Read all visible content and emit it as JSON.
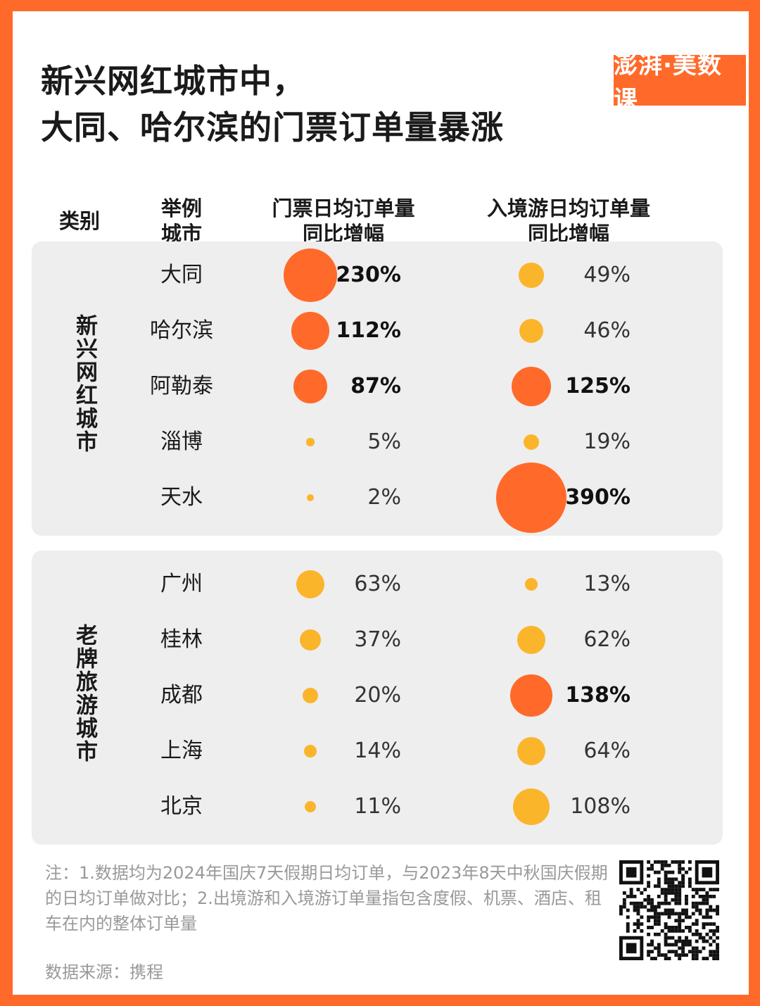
{
  "title": [
    "新兴网红城市中，",
    "大同、哈尔滨的门票订单量暴涨"
  ],
  "logo": "澎湃·美数课",
  "headers": {
    "category": "类别",
    "city": [
      "举例",
      "城市"
    ],
    "col1": [
      "门票日均订单量",
      "同比增幅"
    ],
    "col2": [
      "入境游日均订单量",
      "同比增幅"
    ]
  },
  "colors": {
    "highlight": "#ff6a2a",
    "normal": "#fbb52b",
    "background": "#ff6a2a",
    "panel": "#eeeeee"
  },
  "chart_data": {
    "type": "table",
    "columns": [
      "门票日均订单量同比增幅",
      "入境游日均订单量同比增幅"
    ],
    "groups": [
      {
        "name": "新兴网红城市",
        "rows": [
          {
            "city": "大同",
            "ticket": 230,
            "inbound": 49,
            "ticket_label": "230%",
            "inbound_label": "49%",
            "ticket_hl": true,
            "inbound_hl": false
          },
          {
            "city": "哈尔滨",
            "ticket": 112,
            "inbound": 46,
            "ticket_label": "112%",
            "inbound_label": "46%",
            "ticket_hl": true,
            "inbound_hl": false
          },
          {
            "city": "阿勒泰",
            "ticket": 87,
            "inbound": 125,
            "ticket_label": "87%",
            "inbound_label": "125%",
            "ticket_hl": true,
            "inbound_hl": true
          },
          {
            "city": "淄博",
            "ticket": 5,
            "inbound": 19,
            "ticket_label": "5%",
            "inbound_label": "19%",
            "ticket_hl": false,
            "inbound_hl": false
          },
          {
            "city": "天水",
            "ticket": 2,
            "inbound": 390,
            "ticket_label": "2%",
            "inbound_label": "390%",
            "ticket_hl": false,
            "inbound_hl": true
          }
        ]
      },
      {
        "name": "老牌旅游城市",
        "rows": [
          {
            "city": "广州",
            "ticket": 63,
            "inbound": 13,
            "ticket_label": "63%",
            "inbound_label": "13%",
            "ticket_hl": false,
            "inbound_hl": false
          },
          {
            "city": "桂林",
            "ticket": 37,
            "inbound": 62,
            "ticket_label": "37%",
            "inbound_label": "62%",
            "ticket_hl": false,
            "inbound_hl": false
          },
          {
            "city": "成都",
            "ticket": 20,
            "inbound": 138,
            "ticket_label": "20%",
            "inbound_label": "138%",
            "ticket_hl": false,
            "inbound_hl": true
          },
          {
            "city": "上海",
            "ticket": 14,
            "inbound": 64,
            "ticket_label": "14%",
            "inbound_label": "64%",
            "ticket_hl": false,
            "inbound_hl": false
          },
          {
            "city": "北京",
            "ticket": 11,
            "inbound": 108,
            "ticket_label": "11%",
            "inbound_label": "108%",
            "ticket_hl": false,
            "inbound_hl": false
          }
        ]
      }
    ]
  },
  "note": "注：1.数据均为2024年国庆7天假期日均订单，与2023年8天中秋国庆假期的日均订单做对比；2.出境游和入境游订单量指包含度假、机票、酒店、租车在内的整体订单量",
  "source": "数据来源：携程",
  "qr_icon": "qr-code-icon"
}
